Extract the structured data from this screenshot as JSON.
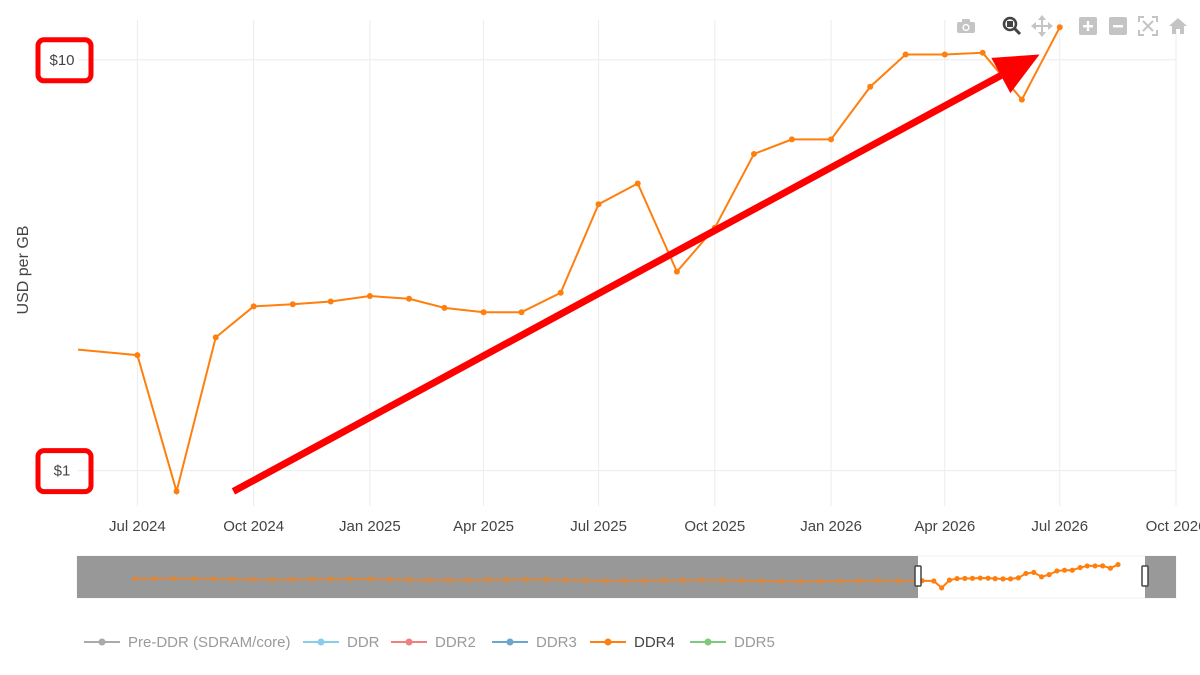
{
  "chart_data": {
    "type": "line",
    "ylabel": "USD per GB",
    "yscale": "log",
    "ylim": [
      0.82,
      12.5
    ],
    "yticks": [
      {
        "value": 1,
        "label": "$1"
      },
      {
        "value": 10,
        "label": "$10"
      }
    ],
    "xlim": [
      "2024-05-15",
      "2026-10-01"
    ],
    "xticks": [
      {
        "date": "2024-07-01",
        "label": "Jul 2024"
      },
      {
        "date": "2024-10-01",
        "label": "Oct 2024"
      },
      {
        "date": "2025-01-01",
        "label": "Jan 2025"
      },
      {
        "date": "2025-04-01",
        "label": "Apr 2025"
      },
      {
        "date": "2025-07-01",
        "label": "Jul 2025"
      },
      {
        "date": "2025-10-01",
        "label": "Oct 2025"
      },
      {
        "date": "2026-01-01",
        "label": "Jan 2026"
      },
      {
        "date": "2026-04-01",
        "label": "Apr 2026"
      },
      {
        "date": "2026-07-01",
        "label": "Jul 2026"
      },
      {
        "date": "2026-10-01",
        "label": "Oct 2026"
      }
    ],
    "grid": true,
    "legend_position": "bottom",
    "series": [
      {
        "name": "Pre-DDR (SDRAM/core)",
        "color": "#aaaaaa",
        "visible": false,
        "x": [],
        "y": []
      },
      {
        "name": "DDR",
        "color": "#87ceeb",
        "visible": false,
        "x": [],
        "y": []
      },
      {
        "name": "DDR2",
        "color": "#f08080",
        "visible": false,
        "x": [],
        "y": []
      },
      {
        "name": "DDR3",
        "color": "#6ca6cd",
        "visible": false,
        "x": [],
        "y": []
      },
      {
        "name": "DDR4",
        "color": "#ff7f0e",
        "visible": true,
        "x": [
          "2024-05-15",
          "2024-07-01",
          "2024-08-01",
          "2024-09-01",
          "2024-10-01",
          "2024-11-01",
          "2024-12-01",
          "2025-01-01",
          "2025-02-01",
          "2025-03-01",
          "2025-04-01",
          "2025-05-01",
          "2025-06-01",
          "2025-07-01",
          "2025-08-01",
          "2025-09-01",
          "2025-10-01",
          "2025-11-01",
          "2025-12-01",
          "2026-01-01",
          "2026-02-01",
          "2026-03-01",
          "2026-04-01",
          "2026-05-01",
          "2026-06-01",
          "2026-07-01"
        ],
        "y": [
          1.97,
          1.91,
          0.89,
          2.11,
          2.51,
          2.54,
          2.58,
          2.66,
          2.62,
          2.49,
          2.43,
          2.43,
          2.71,
          4.45,
          5.0,
          3.05,
          3.9,
          5.9,
          6.4,
          6.4,
          8.6,
          10.3,
          10.3,
          10.4,
          8.0,
          12.0
        ]
      },
      {
        "name": "DDR5",
        "color": "#7fc97f",
        "visible": false,
        "x": [],
        "y": []
      }
    ],
    "annotations": [
      {
        "type": "box",
        "target": "$10"
      },
      {
        "type": "box",
        "target": "$1"
      },
      {
        "type": "arrow",
        "from": {
          "date": "2024-09-15",
          "value": 0.89
        },
        "to": {
          "date": "2026-06-15",
          "value": 10.3
        },
        "color": "#ff0000"
      }
    ]
  },
  "rangeslider": {
    "selected_range": [
      "2024-05-15",
      "2026-10-01"
    ]
  },
  "toolbar": {
    "buttons": [
      {
        "name": "camera-icon"
      },
      {
        "name": "zoom-icon"
      },
      {
        "name": "pan-icon"
      },
      {
        "name": "zoom-in-icon"
      },
      {
        "name": "zoom-out-icon"
      },
      {
        "name": "autoscale-icon"
      },
      {
        "name": "reset-axes-icon"
      }
    ]
  }
}
